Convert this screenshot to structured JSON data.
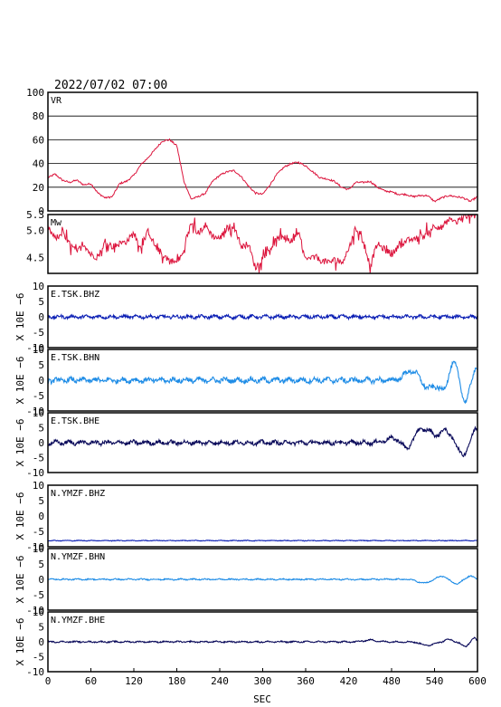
{
  "header": {
    "timestamp": "2022/07/02 07:00"
  },
  "x_axis": {
    "label": "SEC",
    "ticks": [
      0,
      60,
      120,
      180,
      240,
      300,
      360,
      420,
      480,
      540,
      600
    ],
    "range": [
      0,
      600
    ]
  },
  "colors": {
    "vr": "#dc143c",
    "mw": "#dc143c",
    "bhz": "#0a1eb4",
    "bhn": "#1e8ce6",
    "bhe": "#0a0a5a"
  },
  "chart_data": [
    {
      "type": "line",
      "label": "VR",
      "ylim": [
        0,
        100
      ],
      "yticks": [
        0,
        20,
        40,
        60,
        80,
        100
      ],
      "grid": true,
      "series": [
        {
          "x": [
            0,
            10,
            20,
            30,
            40,
            50,
            60,
            70,
            80,
            90,
            100,
            110,
            120,
            130,
            140,
            150,
            160,
            170,
            180,
            190,
            200,
            210,
            220,
            230,
            240,
            250,
            260,
            270,
            280,
            290,
            300,
            310,
            320,
            330,
            340,
            350,
            360,
            370,
            380,
            390,
            400,
            410,
            420,
            430,
            440,
            450,
            460,
            470,
            480,
            490,
            500,
            510,
            520,
            530,
            540,
            550,
            560,
            570,
            580,
            590,
            600
          ],
          "values": [
            28,
            31,
            26,
            24,
            26,
            22,
            23,
            15,
            11,
            12,
            23,
            25,
            30,
            39,
            45,
            52,
            59,
            60,
            55,
            25,
            10,
            12,
            15,
            25,
            30,
            33,
            34,
            29,
            21,
            15,
            14,
            22,
            31,
            37,
            40,
            41,
            38,
            33,
            28,
            27,
            25,
            20,
            18,
            24,
            24,
            25,
            20,
            17,
            16,
            14,
            14,
            12,
            13,
            13,
            8,
            11,
            13,
            12,
            11,
            8,
            12
          ]
        }
      ]
    },
    {
      "type": "line",
      "label": "Mw",
      "ylim": [
        4.2,
        5.3
      ],
      "yticks": [
        4.5,
        5.0,
        5.3
      ],
      "grid": false,
      "series": [
        {
          "x": [
            0,
            10,
            20,
            30,
            40,
            50,
            60,
            70,
            80,
            90,
            100,
            110,
            120,
            130,
            140,
            150,
            160,
            170,
            180,
            190,
            200,
            210,
            220,
            230,
            240,
            250,
            260,
            270,
            280,
            290,
            300,
            310,
            320,
            330,
            340,
            350,
            360,
            370,
            380,
            390,
            400,
            410,
            420,
            430,
            440,
            450,
            460,
            470,
            480,
            490,
            500,
            510,
            520,
            530,
            540,
            550,
            560,
            570,
            580,
            590,
            600
          ],
          "values": [
            5.05,
            4.85,
            4.95,
            4.75,
            4.6,
            4.75,
            4.55,
            4.5,
            4.8,
            4.7,
            4.75,
            4.8,
            4.95,
            4.65,
            5.0,
            4.7,
            4.55,
            4.45,
            4.4,
            4.6,
            5.15,
            4.95,
            5.1,
            4.9,
            4.85,
            5.05,
            5.1,
            4.7,
            4.75,
            4.3,
            4.5,
            4.65,
            4.85,
            4.85,
            4.8,
            4.95,
            4.45,
            4.5,
            4.45,
            4.4,
            4.45,
            4.4,
            4.65,
            5.05,
            4.8,
            4.35,
            4.75,
            4.65,
            4.55,
            4.7,
            4.8,
            4.85,
            4.85,
            4.95,
            5.1,
            5.05,
            5.2,
            5.15,
            5.25,
            5.3,
            5.4
          ]
        }
      ]
    },
    {
      "type": "line",
      "station": "E.TSK.BHZ",
      "ylabel": "X 10E −6",
      "ylim": [
        -10,
        10
      ],
      "yticks": [
        -10,
        -5,
        0,
        5,
        10
      ],
      "color_key": "bhz",
      "amplitude": 0.9,
      "events": []
    },
    {
      "type": "line",
      "station": "E.TSK.BHN",
      "ylabel": "X 10E −6",
      "ylim": [
        -10,
        10
      ],
      "yticks": [
        -10,
        -5,
        0,
        5,
        10
      ],
      "color_key": "bhn",
      "amplitude": 1.4,
      "events": [
        [
          510,
          3.5,
          25
        ],
        [
          530,
          -3,
          25
        ],
        [
          555,
          -4,
          15
        ],
        [
          565,
          6.5,
          15
        ],
        [
          583,
          -7,
          12
        ],
        [
          598,
          4,
          10
        ]
      ]
    },
    {
      "type": "line",
      "station": "E.TSK.BHE",
      "ylabel": "X 10E −6",
      "ylim": [
        -10,
        10
      ],
      "yticks": [
        -10,
        -5,
        0,
        5,
        10
      ],
      "color_key": "bhe",
      "amplitude": 1.2,
      "events": [
        [
          485,
          1.5,
          30
        ],
        [
          500,
          -2.5,
          15
        ],
        [
          520,
          4.5,
          15
        ],
        [
          535,
          3.5,
          15
        ],
        [
          555,
          4.5,
          15
        ],
        [
          575,
          -1.5,
          12
        ],
        [
          582,
          -3.5,
          10
        ],
        [
          597,
          5,
          10
        ]
      ]
    },
    {
      "type": "line",
      "station": "N.YMZF.BHZ",
      "ylabel": "X 10E −6",
      "ylim": [
        -10,
        10
      ],
      "yticks": [
        -10,
        -5,
        0,
        5,
        10
      ],
      "color_key": "bhz",
      "amplitude": 0.2,
      "offset": -8,
      "events": []
    },
    {
      "type": "line",
      "station": "N.YMZF.BHN",
      "ylabel": "X 10E −6",
      "ylim": [
        -10,
        10
      ],
      "yticks": [
        -10,
        -5,
        0,
        5,
        10
      ],
      "color_key": "bhn",
      "amplitude": 0.35,
      "events": [
        [
          525,
          -1.2,
          20
        ],
        [
          550,
          1.0,
          15
        ],
        [
          570,
          -1.4,
          15
        ],
        [
          590,
          1.2,
          10
        ]
      ]
    },
    {
      "type": "line",
      "station": "N.YMZF.BHE",
      "ylabel": "X 10E −6",
      "ylim": [
        -10,
        10
      ],
      "yticks": [
        -10,
        -5,
        0,
        5,
        10
      ],
      "color_key": "bhe",
      "amplitude": 0.4,
      "events": [
        [
          450,
          0.6,
          20
        ],
        [
          530,
          -1.2,
          20
        ],
        [
          560,
          0.8,
          12
        ],
        [
          582,
          -1.5,
          12
        ],
        [
          595,
          1.2,
          8
        ]
      ]
    }
  ]
}
